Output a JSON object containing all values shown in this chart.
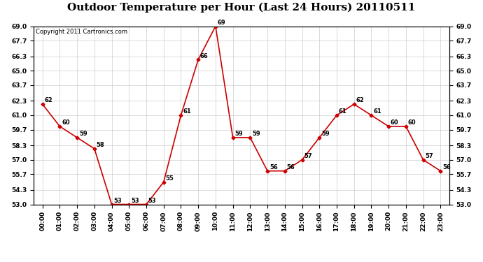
{
  "title": "Outdoor Temperature per Hour (Last 24 Hours) 20110511",
  "copyright": "Copyright 2011 Cartronics.com",
  "hours": [
    "00:00",
    "01:00",
    "02:00",
    "03:00",
    "04:00",
    "05:00",
    "06:00",
    "07:00",
    "08:00",
    "09:00",
    "10:00",
    "11:00",
    "12:00",
    "13:00",
    "14:00",
    "15:00",
    "16:00",
    "17:00",
    "18:00",
    "19:00",
    "20:00",
    "21:00",
    "22:00",
    "23:00"
  ],
  "temps": [
    62,
    60,
    59,
    58,
    53,
    53,
    53,
    55,
    61,
    66,
    69,
    59,
    59,
    56,
    56,
    57,
    59,
    61,
    62,
    61,
    60,
    60,
    57,
    56
  ],
  "ylim": [
    53.0,
    69.0
  ],
  "yticks": [
    53.0,
    54.3,
    55.7,
    57.0,
    58.3,
    59.7,
    61.0,
    62.3,
    63.7,
    65.0,
    66.3,
    67.7,
    69.0
  ],
  "line_color": "#cc0000",
  "marker": "D",
  "marker_size": 2.5,
  "bg_color": "#ffffff",
  "grid_color": "#cccccc",
  "title_fontsize": 11,
  "label_fontsize": 6.5,
  "annotation_fontsize": 6,
  "copyright_fontsize": 6
}
